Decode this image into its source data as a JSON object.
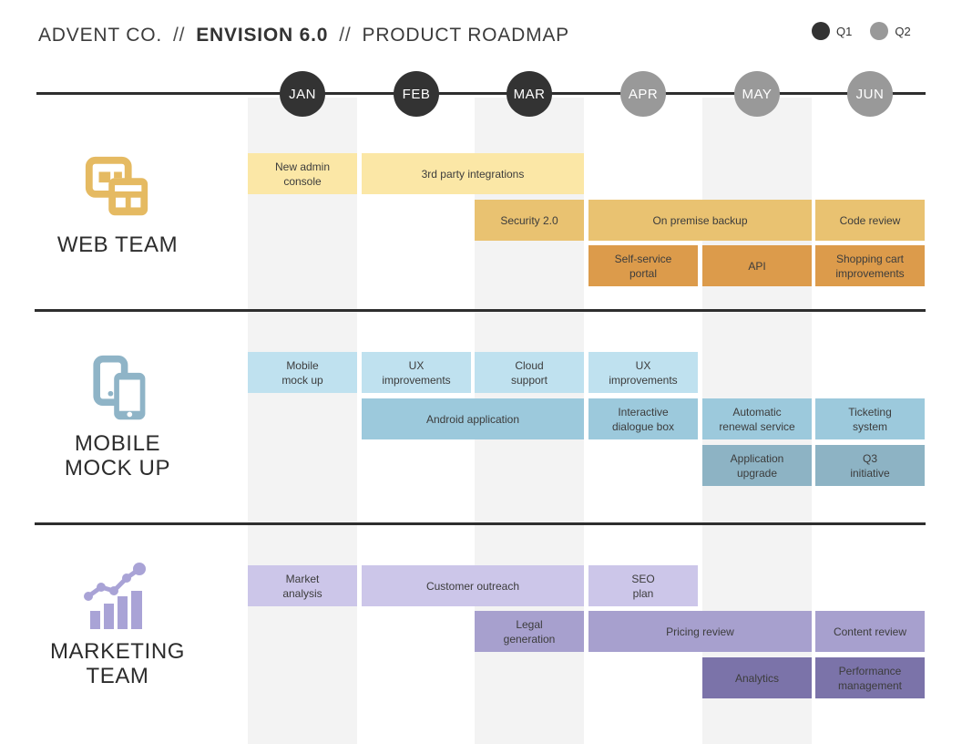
{
  "header": {
    "company": "ADVENT CO.",
    "divider1": "//",
    "product": "ENVISION 6.0",
    "divider2": "//",
    "title": "PRODUCT ROADMAP"
  },
  "legend": {
    "q1": {
      "label": "Q1",
      "color": "#333333"
    },
    "q2": {
      "label": "Q2",
      "color": "#999999"
    }
  },
  "chart_data": {
    "type": "gantt",
    "title": "ADVENT CO. // ENVISION 6.0 // PRODUCT ROADMAP",
    "months": [
      "JAN",
      "FEB",
      "MAR",
      "APR",
      "MAY",
      "JUN"
    ],
    "month_colors": [
      "#333333",
      "#333333",
      "#333333",
      "#999999",
      "#999999",
      "#999999"
    ],
    "quarters": {
      "Q1": [
        "JAN",
        "FEB",
        "MAR"
      ],
      "Q2": [
        "APR",
        "MAY",
        "JUN"
      ]
    },
    "striped_months": [
      "JAN",
      "MAR",
      "MAY"
    ],
    "teams": [
      {
        "name": "WEB TEAM",
        "name_lines": [
          "WEB TEAM"
        ],
        "icon": "browser-windows-icon",
        "icon_color": "#E5BA62",
        "palette": [
          "#FBE7A6",
          "#E9C271",
          "#DC9B4B"
        ],
        "tasks": [
          {
            "label": "New admin console",
            "label_lines": [
              "New admin",
              "console"
            ],
            "start": "JAN",
            "end": "JAN",
            "row": 0,
            "shade": 0
          },
          {
            "label": "3rd party integrations",
            "label_lines": [
              "3rd party integrations"
            ],
            "start": "FEB",
            "end": "MAR",
            "row": 0,
            "shade": 0
          },
          {
            "label": "Security 2.0",
            "label_lines": [
              "Security 2.0"
            ],
            "start": "MAR",
            "end": "MAR",
            "row": 1,
            "shade": 1
          },
          {
            "label": "On premise backup",
            "label_lines": [
              "On premise backup"
            ],
            "start": "APR",
            "end": "MAY",
            "row": 1,
            "shade": 1
          },
          {
            "label": "Code review",
            "label_lines": [
              "Code review"
            ],
            "start": "JUN",
            "end": "JUN",
            "row": 1,
            "shade": 1
          },
          {
            "label": "Self-service portal",
            "label_lines": [
              "Self-service",
              "portal"
            ],
            "start": "APR",
            "end": "APR",
            "row": 2,
            "shade": 2
          },
          {
            "label": "API",
            "label_lines": [
              "API"
            ],
            "start": "MAY",
            "end": "MAY",
            "row": 2,
            "shade": 2
          },
          {
            "label": "Shopping cart improvements",
            "label_lines": [
              "Shopping cart",
              "improvements"
            ],
            "start": "JUN",
            "end": "JUN",
            "row": 2,
            "shade": 2
          }
        ]
      },
      {
        "name": "MOBILE MOCK UP",
        "name_lines": [
          "MOBILE",
          "MOCK UP"
        ],
        "icon": "phones-icon",
        "icon_color": "#8FB4C7",
        "palette": [
          "#BFE1EF",
          "#9CC9DC",
          "#8DB3C4"
        ],
        "tasks": [
          {
            "label": "Mobile mock up",
            "label_lines": [
              "Mobile",
              "mock up"
            ],
            "start": "JAN",
            "end": "JAN",
            "row": 0,
            "shade": 0
          },
          {
            "label": "UX improvements",
            "label_lines": [
              "UX",
              "improvements"
            ],
            "start": "FEB",
            "end": "FEB",
            "row": 0,
            "shade": 0
          },
          {
            "label": "Cloud support",
            "label_lines": [
              "Cloud",
              "support"
            ],
            "start": "MAR",
            "end": "MAR",
            "row": 0,
            "shade": 0
          },
          {
            "label": "UX improvements",
            "label_lines": [
              "UX",
              "improvements"
            ],
            "start": "APR",
            "end": "APR",
            "row": 0,
            "shade": 0
          },
          {
            "label": "Android application",
            "label_lines": [
              "Android application"
            ],
            "start": "FEB",
            "end": "MAR",
            "row": 1,
            "shade": 1
          },
          {
            "label": "Interactive dialogue box",
            "label_lines": [
              "Interactive",
              "dialogue box"
            ],
            "start": "APR",
            "end": "APR",
            "row": 1,
            "shade": 1
          },
          {
            "label": "Automatic renewal service",
            "label_lines": [
              "Automatic",
              "renewal service"
            ],
            "start": "MAY",
            "end": "MAY",
            "row": 1,
            "shade": 1
          },
          {
            "label": "Ticketing system",
            "label_lines": [
              "Ticketing",
              "system"
            ],
            "start": "JUN",
            "end": "JUN",
            "row": 1,
            "shade": 1
          },
          {
            "label": "Application upgrade",
            "label_lines": [
              "Application",
              "upgrade"
            ],
            "start": "MAY",
            "end": "MAY",
            "row": 2,
            "shade": 2
          },
          {
            "label": "Q3 initiative",
            "label_lines": [
              "Q3",
              "initiative"
            ],
            "start": "JUN",
            "end": "JUN",
            "row": 2,
            "shade": 2
          }
        ]
      },
      {
        "name": "MARKETING TEAM",
        "name_lines": [
          "MARKETING",
          "TEAM"
        ],
        "icon": "chart-growth-icon",
        "icon_color": "#A9A3D6",
        "palette": [
          "#CCC6E9",
          "#A7A0CE",
          "#7B73A9"
        ],
        "tasks": [
          {
            "label": "Market analysis",
            "label_lines": [
              "Market",
              "analysis"
            ],
            "start": "JAN",
            "end": "JAN",
            "row": 0,
            "shade": 0
          },
          {
            "label": "Customer outreach",
            "label_lines": [
              "Customer outreach"
            ],
            "start": "FEB",
            "end": "MAR",
            "row": 0,
            "shade": 0
          },
          {
            "label": "SEO plan",
            "label_lines": [
              "SEO",
              "plan"
            ],
            "start": "APR",
            "end": "APR",
            "row": 0,
            "shade": 0
          },
          {
            "label": "Legal generation",
            "label_lines": [
              "Legal",
              "generation"
            ],
            "start": "MAR",
            "end": "MAR",
            "row": 1,
            "shade": 1
          },
          {
            "label": "Pricing review",
            "label_lines": [
              "Pricing review"
            ],
            "start": "APR",
            "end": "MAY",
            "row": 1,
            "shade": 1
          },
          {
            "label": "Content review",
            "label_lines": [
              "Content review"
            ],
            "start": "JUN",
            "end": "JUN",
            "row": 1,
            "shade": 1
          },
          {
            "label": "Analytics",
            "label_lines": [
              "Analytics"
            ],
            "start": "MAY",
            "end": "MAY",
            "row": 2,
            "shade": 2
          },
          {
            "label": "Performance management",
            "label_lines": [
              "Performance",
              "management"
            ],
            "start": "JUN",
            "end": "JUN",
            "row": 2,
            "shade": 2
          }
        ]
      }
    ]
  }
}
